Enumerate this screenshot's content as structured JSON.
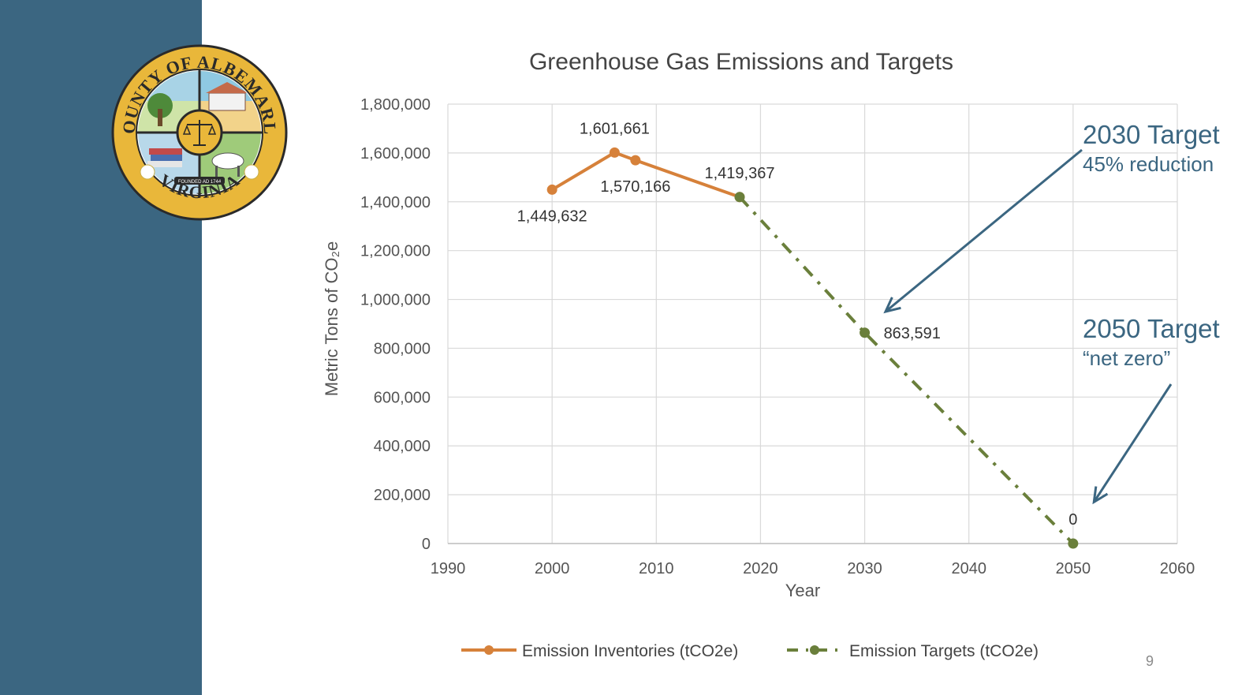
{
  "slide": {
    "page_number": "9",
    "sidebar_color": "#3b6681"
  },
  "seal": {
    "text_top": "COUNTY OF ALBEMARLE",
    "text_bottom": "VIRGINIA",
    "founded": "FOUNDED AD 1744",
    "colors": {
      "ring": "#e9b73a",
      "outline": "#2a2a2a"
    }
  },
  "chart_data": {
    "type": "line",
    "title": "Greenhouse Gas Emissions and Targets",
    "xlabel": "Year",
    "ylabel": "Metric Tons of CO₂e",
    "xlim": [
      1990,
      2060
    ],
    "ylim": [
      0,
      1800000
    ],
    "x_ticks": [
      1990,
      2000,
      2010,
      2020,
      2030,
      2040,
      2050,
      2060
    ],
    "y_ticks": [
      0,
      200000,
      400000,
      600000,
      800000,
      1000000,
      1200000,
      1400000,
      1600000,
      1800000
    ],
    "y_tick_labels": [
      "0",
      "200,000",
      "400,000",
      "600,000",
      "800,000",
      "1,000,000",
      "1,200,000",
      "1,400,000",
      "1,600,000",
      "1,800,000"
    ],
    "grid": true,
    "legend_position": "bottom",
    "series": [
      {
        "name": "Emission Inventories (tCO2e)",
        "color": "#d6813a",
        "style": "solid",
        "points": [
          {
            "x": 2000,
            "y": 1449632,
            "label": "1,449,632",
            "label_pos": "below"
          },
          {
            "x": 2006,
            "y": 1601661,
            "label": "1,601,661",
            "label_pos": "above"
          },
          {
            "x": 2008,
            "y": 1570166,
            "label": "1,570,166",
            "label_pos": "below"
          },
          {
            "x": 2018,
            "y": 1419367,
            "label": "1,419,367",
            "label_pos": "above"
          }
        ]
      },
      {
        "name": "Emission Targets (tCO2e)",
        "color": "#6a7f3b",
        "style": "dash-dot",
        "points": [
          {
            "x": 2018,
            "y": 1419367,
            "label": "",
            "label_pos": "none"
          },
          {
            "x": 2030,
            "y": 863591,
            "label": "863,591",
            "label_pos": "right"
          },
          {
            "x": 2050,
            "y": 0,
            "label": "0",
            "label_pos": "above"
          }
        ]
      }
    ],
    "annotations": [
      {
        "title": "2030 Target",
        "subtitle": "45% reduction",
        "points_to": {
          "x": 2032,
          "y": 950000
        },
        "color": "#3b6681"
      },
      {
        "title": "2050 Target",
        "subtitle": "“net zero”",
        "points_to": {
          "x": 2052,
          "y": 170000
        },
        "color": "#3b6681"
      }
    ]
  }
}
